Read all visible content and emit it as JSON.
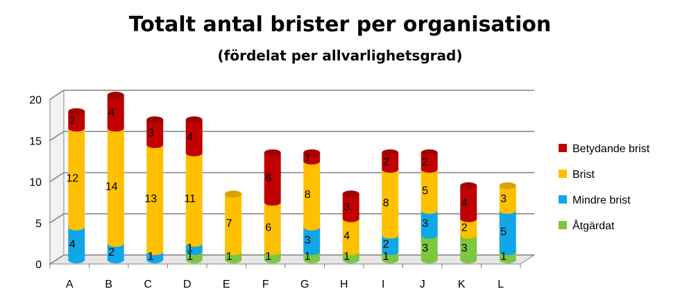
{
  "chart_data": {
    "type": "bar",
    "stacked": true,
    "title": "Totalt antal brister per organisation",
    "subtitle": "(fördelat per allvarlighetsgrad)",
    "categories": [
      "A",
      "B",
      "C",
      "D",
      "E",
      "F",
      "G",
      "H",
      "I",
      "J",
      "K",
      "L"
    ],
    "series": [
      {
        "name": "Åtgärdat",
        "color": "#7dc642",
        "values": [
          0,
          0,
          0,
          1,
          1,
          1,
          1,
          1,
          1,
          3,
          3,
          1
        ]
      },
      {
        "name": "Mindre brist",
        "color": "#10a6e8",
        "values": [
          4,
          2,
          1,
          1,
          0,
          0,
          3,
          0,
          2,
          3,
          0,
          5
        ]
      },
      {
        "name": "Brist",
        "color": "#ffc000",
        "values": [
          12,
          14,
          13,
          11,
          7,
          6,
          8,
          4,
          8,
          5,
          2,
          3
        ]
      },
      {
        "name": "Betydande brist",
        "color": "#c00000",
        "values": [
          2,
          4,
          3,
          4,
          0,
          6,
          1,
          3,
          2,
          2,
          4,
          0
        ]
      }
    ],
    "legend_order": [
      "Betydande brist",
      "Brist",
      "Mindre brist",
      "Åtgärdat"
    ],
    "ylim": [
      0,
      20
    ],
    "yticks": [
      0,
      5,
      10,
      15,
      20
    ],
    "grid": true,
    "legend_position": "right",
    "xlabel": "",
    "ylabel": ""
  }
}
